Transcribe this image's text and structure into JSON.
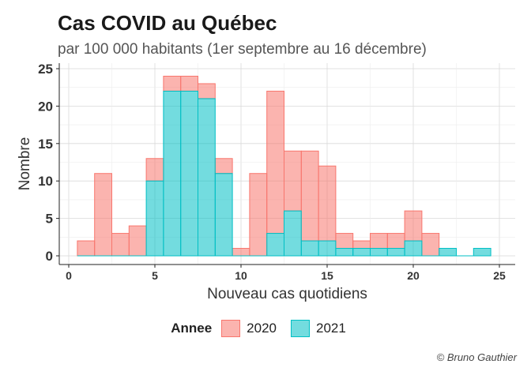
{
  "chart_data": {
    "type": "bar",
    "title": "Cas COVID au Québec",
    "subtitle": "par 100 000 habitants (1er septembre au 16 décembre)",
    "xlabel": "Nouveau cas quotidiens",
    "ylabel": "Nombre",
    "xlim": [
      0,
      25
    ],
    "ylim": [
      0,
      25
    ],
    "x_ticks": [
      0,
      5,
      10,
      15,
      20,
      25
    ],
    "y_ticks": [
      0,
      5,
      10,
      15,
      20,
      25
    ],
    "grid": true,
    "legend_position": "bottom",
    "legend_title": "Annee",
    "bin_width": 1,
    "bin_starts": [
      0.5,
      1.5,
      2.5,
      3.5,
      4.5,
      5.5,
      6.5,
      7.5,
      8.5,
      9.5,
      10.5,
      11.5,
      12.5,
      13.5,
      14.5,
      15.5,
      16.5,
      17.5,
      18.5,
      19.5,
      20.5,
      21.5,
      22.5,
      23.5
    ],
    "series": [
      {
        "name": "2020",
        "color": "#F8766D",
        "values": [
          2,
          11,
          3,
          4,
          3,
          2,
          2,
          2,
          2,
          1,
          11,
          19,
          8,
          12,
          10,
          2,
          1,
          2,
          2,
          4,
          3,
          0,
          0,
          0
        ]
      },
      {
        "name": "2021",
        "color": "#00BFC4",
        "values": [
          0,
          0,
          0,
          0,
          10,
          22,
          22,
          21,
          11,
          0,
          0,
          3,
          6,
          2,
          2,
          1,
          1,
          1,
          1,
          2,
          0,
          1,
          0,
          1
        ]
      }
    ]
  },
  "caption": "© Bruno Gauthier"
}
